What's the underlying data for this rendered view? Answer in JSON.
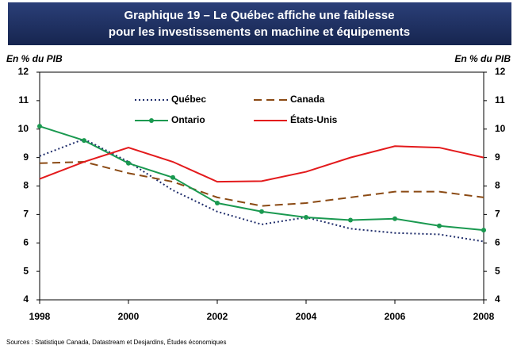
{
  "chart_data": {
    "type": "line",
    "title": [
      "Graphique 19  – Le Québec affiche une faiblesse",
      "pour les investissements en machine et équipements"
    ],
    "y_label": "En % du PIB",
    "y2_label": "En % du PIB",
    "x": [
      1998,
      1999,
      2000,
      2001,
      2002,
      2003,
      2004,
      2005,
      2006,
      2007,
      2008
    ],
    "series": [
      {
        "name": "Québec",
        "color": "#1f2d6b",
        "dash": "dotted",
        "values": [
          9.05,
          9.65,
          8.85,
          7.85,
          7.1,
          6.65,
          6.9,
          6.5,
          6.35,
          6.3,
          6.05
        ]
      },
      {
        "name": "Canada",
        "color": "#8b4a14",
        "dash": "dashed",
        "values": [
          8.8,
          8.85,
          8.45,
          8.15,
          7.6,
          7.3,
          7.4,
          7.6,
          7.8,
          7.8,
          7.6
        ]
      },
      {
        "name": "Ontario",
        "color": "#1a9950",
        "markers": true,
        "values": [
          10.1,
          9.6,
          8.8,
          8.3,
          7.4,
          7.1,
          6.9,
          6.8,
          6.85,
          6.6,
          6.45
        ]
      },
      {
        "name": "États-Unis",
        "color": "#e31a1c",
        "values": [
          8.25,
          8.85,
          9.35,
          8.85,
          8.15,
          8.17,
          8.5,
          9.0,
          9.4,
          9.35,
          9.0
        ]
      }
    ],
    "xlim": [
      1998,
      2008
    ],
    "xticks": [
      1998,
      2000,
      2002,
      2004,
      2006,
      2008
    ],
    "ylim": [
      4,
      12
    ],
    "yticks": [
      4,
      5,
      6,
      7,
      8,
      9,
      10,
      11,
      12
    ],
    "y2lim": [
      4,
      12
    ],
    "y2ticks": [
      4,
      5,
      6,
      7,
      8,
      9,
      10,
      11,
      12
    ],
    "source": "Sources : Statistique Canada, Datastream et Desjardins, Études économiques"
  }
}
